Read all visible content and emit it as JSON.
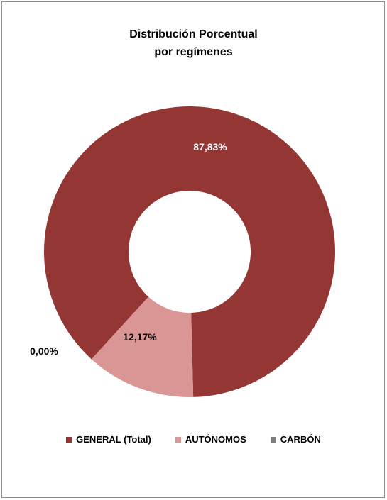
{
  "chart_data": {
    "type": "donut",
    "title_lines": [
      "Distribución Porcentual",
      "por regímenes"
    ],
    "series": [
      {
        "name": "GENERAL (Total)",
        "value": 87.83,
        "label": "87,83%",
        "color": "#943634"
      },
      {
        "name": "AUTÓNOMOS",
        "value": 12.17,
        "label": "12,17%",
        "color": "#d99694"
      },
      {
        "name": "CARBÓN",
        "value": 0.0,
        "label": "0,00%",
        "color": "#7f7f7f"
      }
    ],
    "legend_position": "bottom"
  }
}
